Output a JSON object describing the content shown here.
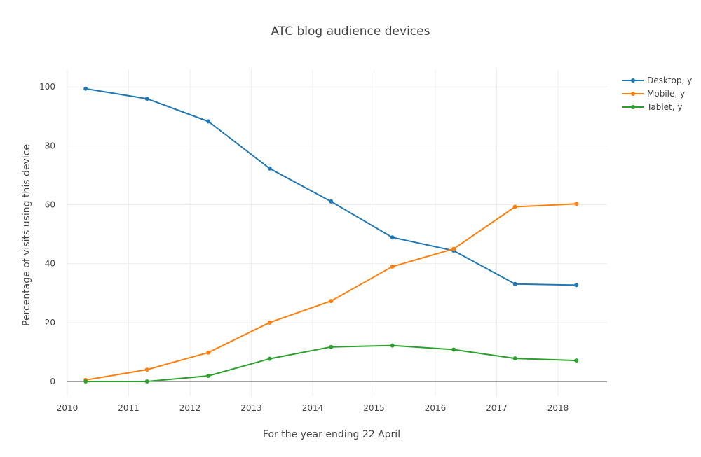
{
  "chart_data": {
    "type": "line",
    "title": "ATC blog audience devices",
    "xlabel": "For the year ending 22 April",
    "ylabel": "Percentage of visits using this device",
    "x": [
      2010.3,
      2011.3,
      2012.3,
      2013.3,
      2014.3,
      2015.3,
      2016.3,
      2017.3,
      2018.3
    ],
    "xlim": [
      2010,
      2018.8
    ],
    "ylim": [
      -5,
      106
    ],
    "x_ticks": [
      "2010",
      "2011",
      "2012",
      "2013",
      "2014",
      "2015",
      "2016",
      "2017",
      "2018"
    ],
    "y_ticks": [
      "0",
      "20",
      "40",
      "60",
      "80",
      "100"
    ],
    "grid": true,
    "legend_position": "top-right",
    "series": [
      {
        "name": "Desktop, y",
        "color": "#1f77b4",
        "values": [
          99.4,
          96.0,
          88.3,
          72.3,
          61.1,
          48.9,
          44.4,
          33.1,
          32.7
        ]
      },
      {
        "name": "Mobile, y",
        "color": "#ff7f0e",
        "values": [
          0.5,
          4.0,
          9.8,
          20.0,
          27.3,
          39.0,
          45.0,
          59.3,
          60.3
        ]
      },
      {
        "name": "Tablet, y",
        "color": "#2ca02c",
        "values": [
          0.0,
          0.0,
          1.9,
          7.7,
          11.7,
          12.2,
          10.8,
          7.8,
          7.1
        ]
      }
    ]
  }
}
